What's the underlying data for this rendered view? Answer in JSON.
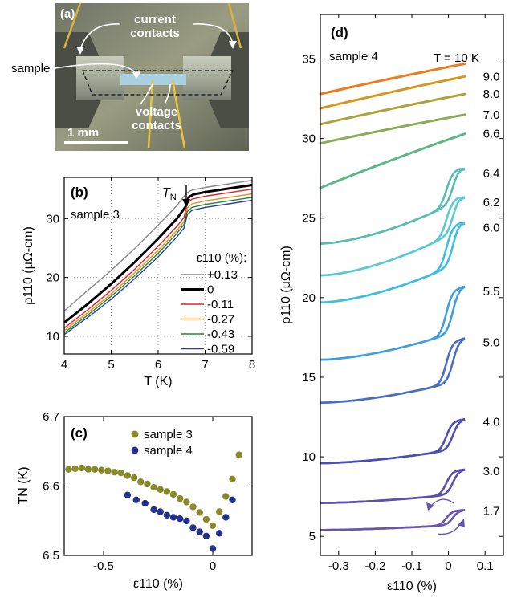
{
  "panel_a": {
    "label": "(a)",
    "current_label": [
      "current",
      "contacts"
    ],
    "sample_label": "sample",
    "voltage_label": [
      "voltage",
      "contacts"
    ],
    "scale_label": "1 mm"
  },
  "chart_data": [
    {
      "id": "b",
      "panel_label": "(b)",
      "type": "line",
      "annotation": "sample 3",
      "tn_label": "T",
      "tn_sub": "N",
      "legend_title": "ε110 (%):",
      "xlabel": "T (K)",
      "ylabel": "ρ110 (μΩ-cm)",
      "xlim": [
        4,
        8
      ],
      "ylim": [
        7,
        37
      ],
      "xticks": [
        4,
        5,
        6,
        7,
        8
      ],
      "yticks": [
        10,
        20,
        30
      ],
      "legend_position": "right",
      "series": [
        {
          "name": "+0.13",
          "color": "#888888",
          "width": 1.4,
          "x": [
            4,
            4.5,
            5,
            5.5,
            6,
            6.4,
            6.6,
            6.7,
            7,
            7.5,
            8
          ],
          "y": [
            14.3,
            17.8,
            21.2,
            24.9,
            28.9,
            32.2,
            34.3,
            34.8,
            35.3,
            35.9,
            36.5
          ]
        },
        {
          "name": "0",
          "color": "#000000",
          "width": 3,
          "x": [
            4,
            4.5,
            5,
            5.5,
            6,
            6.4,
            6.6,
            6.65,
            6.75,
            7,
            7.5,
            8
          ],
          "y": [
            12.3,
            15.5,
            18.9,
            22.6,
            26.6,
            30,
            32.2,
            33.6,
            34.1,
            34.5,
            35.1,
            35.7
          ]
        },
        {
          "name": "-0.11",
          "color": "#e02020",
          "width": 1.4,
          "x": [
            4,
            4.5,
            5,
            5.5,
            6,
            6.4,
            6.55,
            6.62,
            6.72,
            7,
            7.5,
            8
          ],
          "y": [
            11.4,
            14.5,
            17.8,
            21.4,
            25.3,
            28.7,
            30.2,
            32.6,
            33.3,
            33.8,
            34.4,
            35
          ]
        },
        {
          "name": "-0.27",
          "color": "#f08a1c",
          "width": 1.4,
          "x": [
            4,
            4.5,
            5,
            5.5,
            6,
            6.4,
            6.55,
            6.62,
            6.72,
            7,
            7.5,
            8
          ],
          "y": [
            11,
            14,
            17.2,
            20.8,
            24.6,
            28,
            29.5,
            31.8,
            32.5,
            33,
            33.6,
            34.2
          ]
        },
        {
          "name": "-0.43",
          "color": "#1f8a2e",
          "width": 1.4,
          "x": [
            4,
            4.5,
            5,
            5.5,
            6,
            6.4,
            6.55,
            6.62,
            6.72,
            7,
            7.5,
            8
          ],
          "y": [
            10.6,
            13.6,
            16.8,
            20.3,
            24.1,
            27.5,
            29,
            31.2,
            31.9,
            32.4,
            33,
            33.6
          ]
        },
        {
          "name": "-0.59",
          "color": "#2a3f9e",
          "width": 1.4,
          "x": [
            4,
            4.5,
            5,
            5.5,
            6,
            6.4,
            6.55,
            6.62,
            6.72,
            7,
            7.5,
            8
          ],
          "y": [
            10.3,
            13.2,
            16.3,
            19.8,
            23.5,
            26.9,
            28.4,
            30.7,
            31.4,
            31.9,
            32.5,
            33.1
          ]
        }
      ]
    },
    {
      "id": "c",
      "panel_label": "(c)",
      "type": "scatter",
      "xlabel": "ε110 (%)",
      "ylabel": "TN (K)",
      "xlim": [
        -0.68,
        0.18
      ],
      "ylim": [
        6.5,
        6.7
      ],
      "xticks": [
        -0.5,
        0
      ],
      "yticks": [
        6.5,
        6.6,
        6.7
      ],
      "legend_position": "top-right",
      "series": [
        {
          "name": "sample 3",
          "color": "#8a8a2a",
          "x": [
            -0.66,
            -0.63,
            -0.6,
            -0.57,
            -0.54,
            -0.51,
            -0.48,
            -0.45,
            -0.42,
            -0.39,
            -0.36,
            -0.33,
            -0.3,
            -0.27,
            -0.24,
            -0.21,
            -0.18,
            -0.15,
            -0.12,
            -0.09,
            -0.06,
            -0.03,
            0,
            0.03,
            0.06,
            0.09,
            0.12
          ],
          "y": [
            6.624,
            6.625,
            6.626,
            6.624,
            6.624,
            6.623,
            6.622,
            6.62,
            6.619,
            6.615,
            6.612,
            6.606,
            6.603,
            6.598,
            6.595,
            6.592,
            6.588,
            6.582,
            6.577,
            6.57,
            6.562,
            6.552,
            6.543,
            6.563,
            6.585,
            6.61,
            6.645
          ]
        },
        {
          "name": "sample 4",
          "color": "#23318f",
          "x": [
            -0.39,
            -0.35,
            -0.31,
            -0.27,
            -0.24,
            -0.21,
            -0.18,
            -0.15,
            -0.12,
            -0.09,
            -0.06,
            -0.03,
            0,
            0.03,
            0.06,
            0.09
          ],
          "y": [
            6.587,
            6.58,
            6.575,
            6.566,
            6.563,
            6.558,
            6.555,
            6.553,
            6.55,
            6.54,
            6.534,
            6.528,
            6.51,
            6.532,
            6.555,
            6.58
          ]
        }
      ]
    },
    {
      "id": "d",
      "panel_label": "(d)",
      "type": "line",
      "annotation": "sample 4",
      "xlabel": "ε110 (%)",
      "ylabel": "ρ110 (μΩ-cm)",
      "xlim": [
        -0.35,
        0.15
      ],
      "ylim": [
        3.8,
        37.8
      ],
      "xticks": [
        -0.3,
        -0.2,
        -0.1,
        0,
        0.1
      ],
      "yticks": [
        5,
        10,
        15,
        20,
        25,
        30,
        35
      ],
      "series": [
        {
          "name": "T = 10 K",
          "color": "#f07a1e",
          "kind": "linear",
          "y0": 32.8,
          "y1": 34.7
        },
        {
          "name": "9.0",
          "color": "#d9961e",
          "kind": "linear",
          "y0": 31.9,
          "y1": 33.9
        },
        {
          "name": "8.0",
          "color": "#b0a23a",
          "kind": "linear",
          "y0": 30.9,
          "y1": 32.8
        },
        {
          "name": "7.0",
          "color": "#8aae55",
          "kind": "linear",
          "y0": 29.7,
          "y1": 31.5
        },
        {
          "name": "6.6",
          "color": "#5cb884",
          "kind": "linear",
          "y0": 26.9,
          "y1": 30.3
        },
        {
          "name": "6.4",
          "color": "#58bcb2",
          "kind": "hyst",
          "y0": 23.4,
          "y1": 25.8,
          "y2": 27.8
        },
        {
          "name": "6.2",
          "color": "#5bc8d6",
          "kind": "hyst",
          "y0": 21.4,
          "y1": 23.9,
          "y2": 26.0
        },
        {
          "name": "6.0",
          "color": "#3bbde8",
          "kind": "hyst",
          "y0": 19.7,
          "y1": 21.9,
          "y2": 24.4
        },
        {
          "name": "5.5",
          "color": "#3f9ee0",
          "kind": "hyst",
          "y0": 16.1,
          "y1": 17.7,
          "y2": 20.4
        },
        {
          "name": "5.0",
          "color": "#4a6dc5",
          "kind": "hyst",
          "y0": 13.4,
          "y1": 14.6,
          "y2": 17.2
        },
        {
          "name": "4.0",
          "color": "#4b4fb5",
          "kind": "hyst",
          "y0": 9.6,
          "y1": 10.4,
          "y2": 12.2
        },
        {
          "name": "3.0",
          "color": "#5b4fb0",
          "kind": "hyst",
          "y0": 7.1,
          "y1": 7.6,
          "y2": 9.1
        },
        {
          "name": "1.7",
          "color": "#6a55ad",
          "kind": "hyst",
          "y0": 5.4,
          "y1": 5.7,
          "y2": 6.6
        }
      ]
    }
  ]
}
